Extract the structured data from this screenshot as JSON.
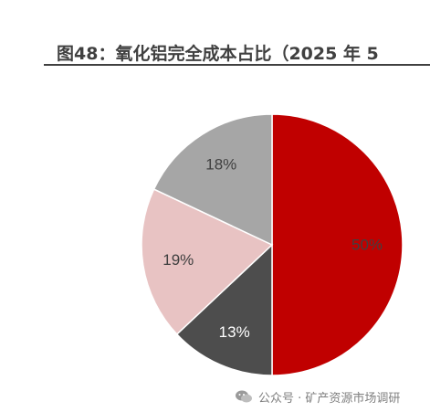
{
  "title": "图48：氧化铝完全成本占比（2025 年 5",
  "watermark": "公众号 · 矿产资源市场调研",
  "colors": {
    "red": "#c00000",
    "dark": "#4d4d4d",
    "pink": "#e8c3c3",
    "gray": "#a6a6a6"
  },
  "chart_data": {
    "type": "pie",
    "title": "图48：氧化铝完全成本占比（2025 年 5",
    "start": "12 o'clock",
    "direction": "clockwise",
    "slices": [
      {
        "label": "50%",
        "value": 50,
        "color": "#c00000",
        "label_color": "#404040"
      },
      {
        "label": "13%",
        "value": 13,
        "color": "#4d4d4d",
        "label_color": "#ffffff"
      },
      {
        "label": "19%",
        "value": 19,
        "color": "#e8c3c3",
        "label_color": "#404040"
      },
      {
        "label": "18%",
        "value": 18,
        "color": "#a6a6a6",
        "label_color": "#404040"
      }
    ]
  }
}
